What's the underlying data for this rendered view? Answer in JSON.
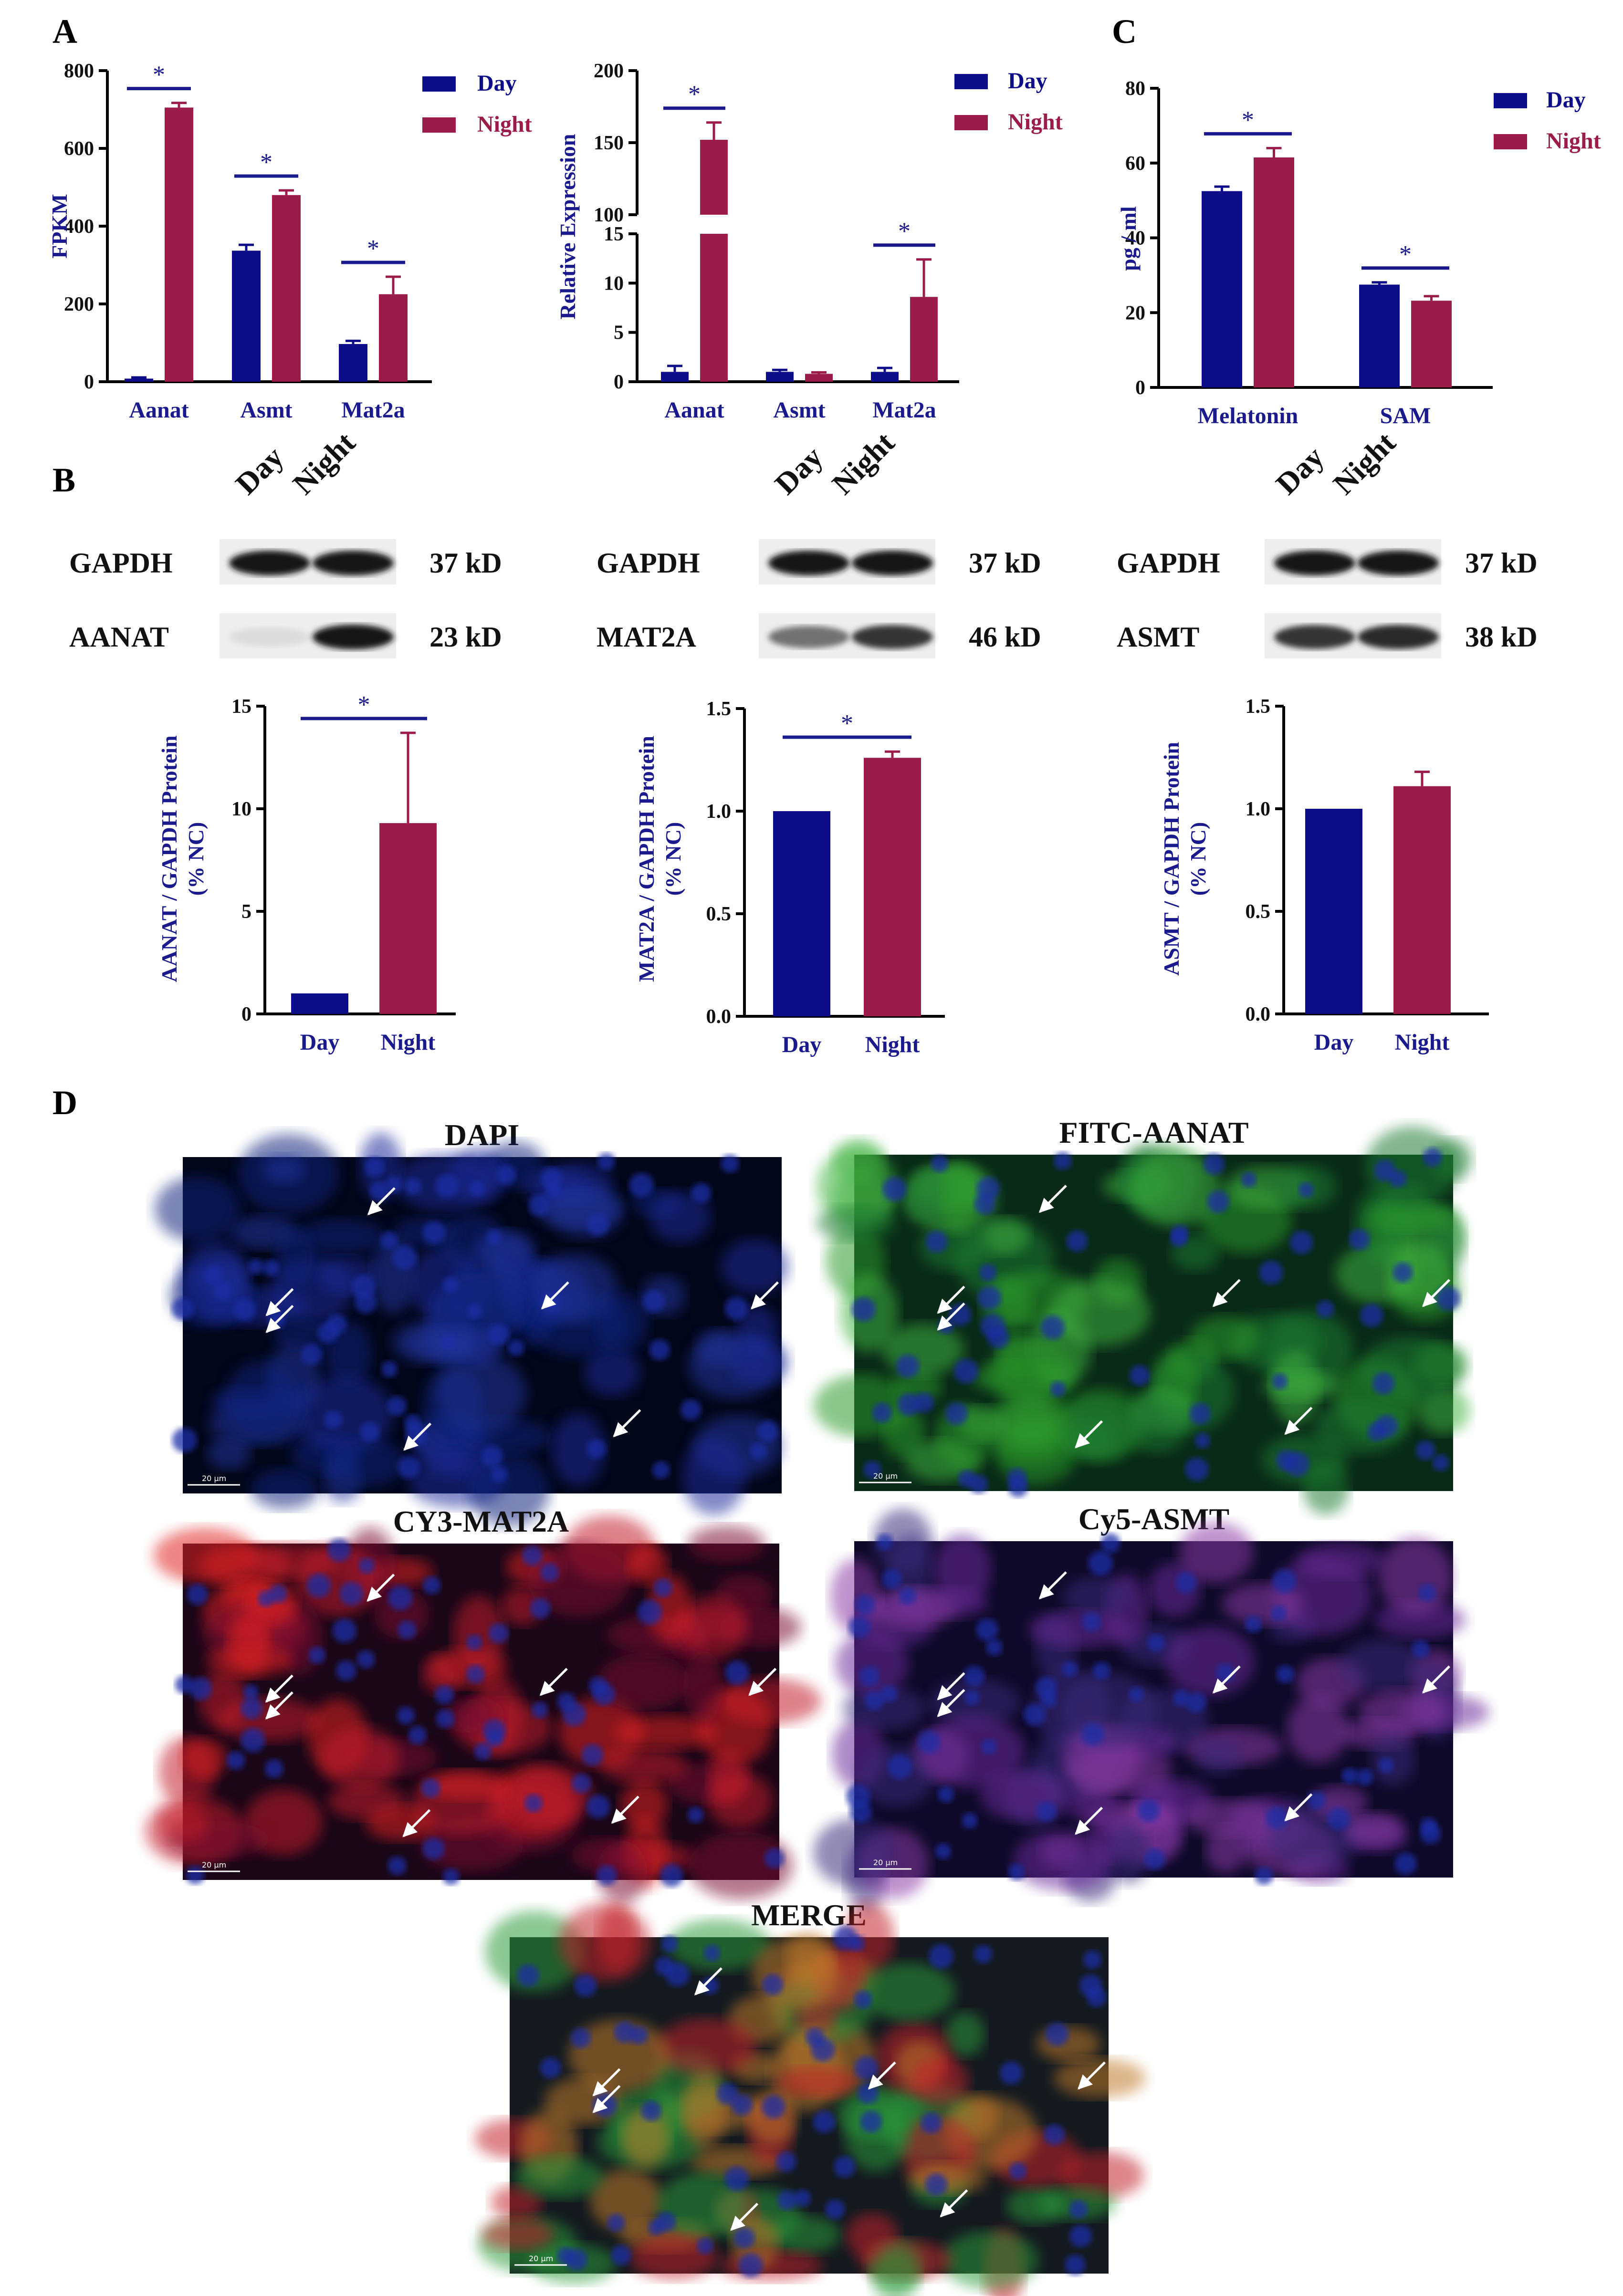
{
  "panels": {
    "A": "A",
    "B": "B",
    "C": "C",
    "D": "D"
  },
  "colors": {
    "day": "#0d0d8a",
    "night": "#9b1b4b",
    "sig": "#1a1a8c"
  },
  "legend": {
    "day": "Day",
    "night": "Night"
  },
  "chart_data": [
    {
      "type": "bar",
      "id": "fpkm",
      "categories": [
        "Aanat",
        "Asmt",
        "Mat2a"
      ],
      "ylabel": "FPKM",
      "ylim": [
        0,
        800
      ],
      "yticks": [
        0,
        200,
        400,
        600,
        800
      ],
      "series": [
        {
          "name": "Day",
          "values": [
            8,
            337,
            97
          ],
          "errors": [
            3,
            15,
            8
          ]
        },
        {
          "name": "Night",
          "values": [
            705,
            480,
            225
          ],
          "errors": [
            12,
            12,
            45
          ]
        }
      ],
      "significance": [
        "*",
        "*",
        "*"
      ]
    },
    {
      "type": "bar",
      "id": "qpcr",
      "categories": [
        "Aanat",
        "Asmt",
        "Mat2a"
      ],
      "ylabel": "Relative Expression",
      "broken_axis": {
        "lower": [
          0,
          15
        ],
        "upper": [
          100,
          200
        ]
      },
      "yticks_lower": [
        0,
        5,
        10,
        15
      ],
      "yticks_upper": [
        100,
        150,
        200
      ],
      "series": [
        {
          "name": "Day",
          "values": [
            1.0,
            1.0,
            1.0
          ],
          "errors": [
            0.6,
            0.2,
            0.4
          ]
        },
        {
          "name": "Night",
          "values": [
            152,
            0.8,
            8.6
          ],
          "errors": [
            12,
            0.15,
            3.8
          ]
        }
      ],
      "significance": [
        "*",
        "",
        "*"
      ]
    },
    {
      "type": "bar",
      "id": "elisa",
      "categories": [
        "Melatonin",
        "SAM"
      ],
      "ylabel": "pg / ml",
      "ylim": [
        0,
        80
      ],
      "yticks": [
        0,
        20,
        40,
        60,
        80
      ],
      "series": [
        {
          "name": "Day",
          "values": [
            52.5,
            27.5
          ],
          "errors": [
            1.2,
            0.6
          ]
        },
        {
          "name": "Night",
          "values": [
            61.5,
            23.2
          ],
          "errors": [
            2.5,
            1.2
          ]
        }
      ],
      "significance": [
        "*",
        "*"
      ]
    },
    {
      "type": "bar",
      "id": "aanat_wb",
      "categories": [
        "Day",
        "Night"
      ],
      "ylabel": [
        "AANAT / GAPDH Protein",
        "(% NC)"
      ],
      "ylim": [
        0,
        15
      ],
      "yticks": [
        0,
        5,
        10,
        15
      ],
      "values": [
        1.0,
        9.3
      ],
      "errors": [
        0,
        4.4
      ],
      "significance": "*"
    },
    {
      "type": "bar",
      "id": "mat2a_wb",
      "categories": [
        "Day",
        "Night"
      ],
      "ylabel": [
        "MAT2A / GAPDH Protein",
        "(% NC)"
      ],
      "ylim": [
        0,
        1.5
      ],
      "yticks": [
        "0.0",
        "0.5",
        "1.0",
        "1.5"
      ],
      "values": [
        1.0,
        1.26
      ],
      "errors": [
        0,
        0.03
      ],
      "significance": "*"
    },
    {
      "type": "bar",
      "id": "asmt_wb",
      "categories": [
        "Day",
        "Night"
      ],
      "ylabel": [
        "ASMT / GAPDH Protein",
        "(% NC)"
      ],
      "ylim": [
        0,
        1.5
      ],
      "yticks": [
        "0.0",
        "0.5",
        "1.0",
        "1.5"
      ],
      "values": [
        1.0,
        1.11
      ],
      "errors": [
        0,
        0.07
      ],
      "significance": ""
    }
  ],
  "blots": [
    {
      "lanes": [
        "Day",
        "Night"
      ],
      "rows": [
        {
          "protein": "GAPDH",
          "size": "37 kD"
        },
        {
          "protein": "AANAT",
          "size": "23 kD"
        }
      ]
    },
    {
      "lanes": [
        "Day",
        "Night"
      ],
      "rows": [
        {
          "protein": "GAPDH",
          "size": "37 kD"
        },
        {
          "protein": "MAT2A",
          "size": "46 kD"
        }
      ]
    },
    {
      "lanes": [
        "Day",
        "Night"
      ],
      "rows": [
        {
          "protein": "GAPDH",
          "size": "37 kD"
        },
        {
          "protein": "ASMT",
          "size": "38 kD"
        }
      ]
    }
  ],
  "micrographs": [
    {
      "title": "DAPI",
      "stain": "dapi",
      "scale": "20 μm"
    },
    {
      "title": "FITC-AANAT",
      "stain": "fitc",
      "scale": "20 μm"
    },
    {
      "title": "CY3-MAT2A",
      "stain": "cy3",
      "scale": "20 μm"
    },
    {
      "title": "Cy5-ASMT",
      "stain": "cy5",
      "scale": "20 μm"
    },
    {
      "title": "MERGE",
      "stain": "merge",
      "scale": "20 μm"
    }
  ]
}
